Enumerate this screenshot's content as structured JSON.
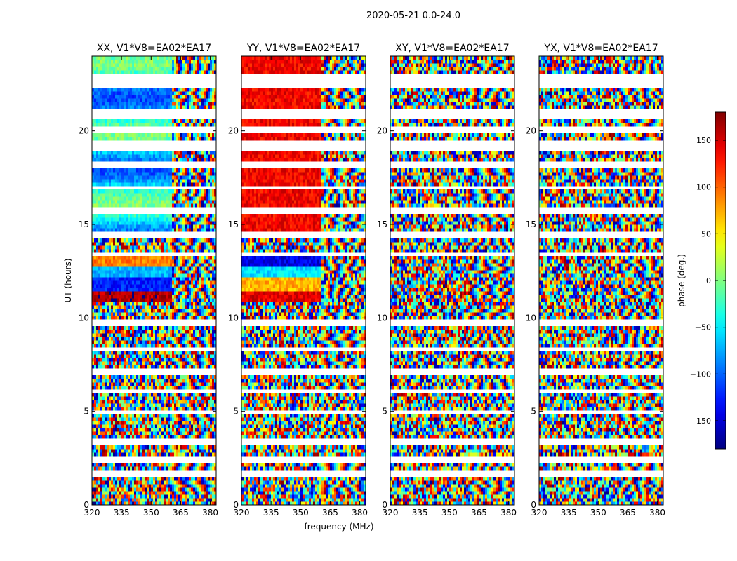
{
  "figure": {
    "suptitle": "2020-05-21 0.0-24.0",
    "xlabel": "frequency (MHz)",
    "ylabel": "UT (hours)"
  },
  "colorbar": {
    "label": "phase (deg.)",
    "min": -180,
    "max": 180,
    "ticks": [
      -150,
      -100,
      -50,
      0,
      50,
      100,
      150
    ],
    "tick_labels": [
      "−150",
      "−100",
      "−50",
      "0",
      "50",
      "100",
      "150"
    ],
    "colormap": "jet",
    "colors": [
      "#00007f",
      "#0000ff",
      "#007fff",
      "#00ffff",
      "#7fff7f",
      "#ffff00",
      "#ff7f00",
      "#ff0000",
      "#7f0000"
    ]
  },
  "chart_data": [
    {
      "type": "heatmap",
      "title": "XX, V1*V8=EA02*EA17",
      "x_ticks": [
        320,
        335,
        350,
        365,
        380
      ],
      "y_ticks": [
        0,
        5,
        10,
        15,
        20
      ],
      "xlim": [
        320,
        383
      ],
      "ylim": [
        0,
        24
      ],
      "value": "phase (deg.)"
    },
    {
      "type": "heatmap",
      "title": "YY, V1*V8=EA02*EA17",
      "x_ticks": [
        320,
        335,
        350,
        365,
        380
      ],
      "y_ticks": [
        0,
        5,
        10,
        15,
        20
      ],
      "xlim": [
        320,
        383
      ],
      "ylim": [
        0,
        24
      ],
      "value": "phase (deg.)"
    },
    {
      "type": "heatmap",
      "title": "XY, V1*V8=EA02*EA17",
      "x_ticks": [
        320,
        335,
        350,
        365,
        380
      ],
      "y_ticks": [
        0,
        5,
        10,
        15,
        20
      ],
      "xlim": [
        320,
        383
      ],
      "ylim": [
        0,
        24
      ],
      "value": "phase (deg.)"
    },
    {
      "type": "heatmap",
      "title": "YX, V1*V8=EA02*EA17",
      "x_ticks": [
        320,
        335,
        350,
        365,
        380
      ],
      "y_ticks": [
        0,
        5,
        10,
        15,
        20
      ],
      "xlim": [
        320,
        383
      ],
      "ylim": [
        0,
        24
      ],
      "value": "phase (deg.)"
    }
  ]
}
